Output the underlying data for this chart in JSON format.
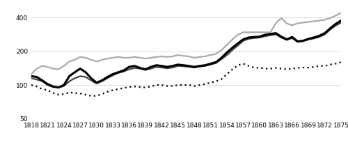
{
  "years": [
    1818,
    1819,
    1820,
    1821,
    1822,
    1823,
    1824,
    1825,
    1826,
    1827,
    1828,
    1829,
    1830,
    1831,
    1832,
    1833,
    1834,
    1835,
    1836,
    1837,
    1838,
    1839,
    1840,
    1841,
    1842,
    1843,
    1844,
    1845,
    1846,
    1847,
    1848,
    1849,
    1850,
    1851,
    1852,
    1853,
    1854,
    1855,
    1856,
    1857,
    1858,
    1859,
    1860,
    1861,
    1862,
    1863,
    1864,
    1865,
    1866,
    1867,
    1868,
    1869,
    1870,
    1871,
    1872,
    1873,
    1874,
    1875
  ],
  "old_town": [
    120,
    118,
    110,
    102,
    97,
    95,
    100,
    120,
    130,
    140,
    130,
    115,
    105,
    110,
    118,
    125,
    130,
    135,
    145,
    148,
    142,
    138,
    145,
    150,
    148,
    145,
    148,
    152,
    150,
    148,
    145,
    148,
    150,
    155,
    160,
    175,
    195,
    215,
    235,
    255,
    265,
    268,
    270,
    280,
    285,
    290,
    270,
    255,
    268,
    245,
    248,
    258,
    265,
    275,
    290,
    320,
    350,
    375
  ],
  "north_of_old_town": [
    115,
    112,
    108,
    100,
    96,
    95,
    98,
    108,
    115,
    120,
    118,
    110,
    103,
    108,
    115,
    122,
    128,
    132,
    138,
    142,
    140,
    136,
    140,
    145,
    143,
    141,
    143,
    148,
    147,
    145,
    143,
    146,
    148,
    152,
    157,
    170,
    185,
    205,
    225,
    248,
    258,
    262,
    265,
    272,
    278,
    282,
    265,
    252,
    262,
    242,
    246,
    254,
    260,
    268,
    282,
    312,
    338,
    360
  ],
  "south_of_old_town": [
    125,
    140,
    148,
    145,
    140,
    138,
    148,
    162,
    168,
    178,
    175,
    168,
    162,
    168,
    172,
    175,
    178,
    175,
    175,
    178,
    175,
    172,
    175,
    178,
    180,
    178,
    180,
    185,
    182,
    180,
    175,
    178,
    180,
    185,
    190,
    205,
    228,
    255,
    280,
    295,
    295,
    295,
    295,
    295,
    295,
    355,
    395,
    355,
    340,
    355,
    360,
    365,
    370,
    375,
    382,
    395,
    415,
    440
  ],
  "cpi": [
    100,
    97,
    92,
    90,
    85,
    82,
    83,
    86,
    85,
    84,
    82,
    80,
    80,
    83,
    87,
    90,
    92,
    94,
    96,
    97,
    96,
    95,
    97,
    100,
    100,
    98,
    98,
    100,
    100,
    100,
    98,
    100,
    102,
    105,
    108,
    113,
    125,
    138,
    150,
    155,
    148,
    143,
    142,
    140,
    140,
    142,
    140,
    138,
    140,
    142,
    143,
    143,
    145,
    148,
    148,
    152,
    155,
    160
  ],
  "yticks": [
    50,
    100,
    200,
    400
  ],
  "xticks": [
    1818,
    1821,
    1824,
    1827,
    1830,
    1833,
    1836,
    1839,
    1842,
    1845,
    1848,
    1851,
    1854,
    1857,
    1860,
    1863,
    1866,
    1869,
    1872,
    1875
  ],
  "old_town_color": "#000000",
  "north_color": "#444444",
  "south_color": "#aaaaaa",
  "cpi_color": "#000000",
  "old_town_lw": 2.2,
  "north_lw": 1.6,
  "south_lw": 1.6,
  "cpi_lw": 1.6,
  "legend_fontsize": 7.0,
  "tick_fontsize": 6.5,
  "ylim_log": [
    50,
    500
  ],
  "bg_color": "#ffffff",
  "grid_color": "#cccccc"
}
